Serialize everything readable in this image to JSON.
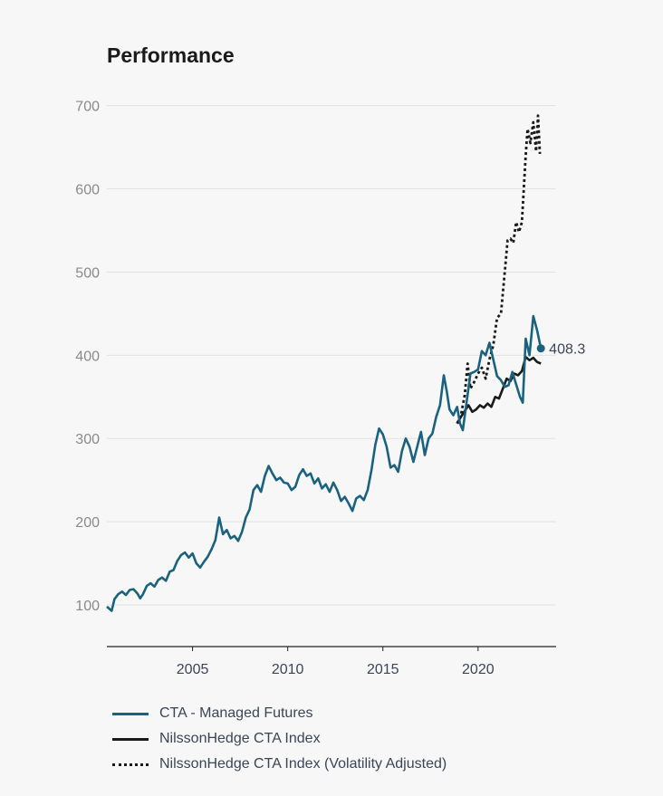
{
  "header": {
    "title": "Performance"
  },
  "colors": {
    "managed": "#1a6280",
    "index": "#1a1a1a",
    "grid": "#e2e2e2",
    "tick_y": "#8a8a8a",
    "tick_x": "#3a4655"
  },
  "chart_data": {
    "type": "line",
    "title": "Performance",
    "xlabel": "",
    "ylabel": "",
    "xlim": [
      2000.5,
      2024.1
    ],
    "ylim": [
      50,
      705
    ],
    "y_ticks": [
      100,
      200,
      300,
      400,
      500,
      600,
      700
    ],
    "x_ticks": [
      2005,
      2010,
      2015,
      2020
    ],
    "grid": "horizontal",
    "legend_position": "bottom",
    "end_label": "408.3",
    "series": [
      {
        "name": "CTA - Managed Futures",
        "color": "#1a6280",
        "style": "solid",
        "points": [
          [
            2000.5,
            98
          ],
          [
            2000.75,
            93
          ],
          [
            2000.9,
            107
          ],
          [
            2001.1,
            113
          ],
          [
            2001.3,
            116
          ],
          [
            2001.5,
            112
          ],
          [
            2001.7,
            118
          ],
          [
            2001.9,
            119
          ],
          [
            2002.1,
            114
          ],
          [
            2002.25,
            108
          ],
          [
            2002.4,
            113
          ],
          [
            2002.6,
            123
          ],
          [
            2002.8,
            126
          ],
          [
            2003.0,
            122
          ],
          [
            2003.2,
            130
          ],
          [
            2003.4,
            133
          ],
          [
            2003.6,
            129
          ],
          [
            2003.8,
            140
          ],
          [
            2004.0,
            142
          ],
          [
            2004.2,
            153
          ],
          [
            2004.4,
            160
          ],
          [
            2004.6,
            163
          ],
          [
            2004.8,
            157
          ],
          [
            2005.0,
            162
          ],
          [
            2005.2,
            150
          ],
          [
            2005.4,
            145
          ],
          [
            2005.6,
            152
          ],
          [
            2005.8,
            158
          ],
          [
            2006.0,
            167
          ],
          [
            2006.2,
            178
          ],
          [
            2006.4,
            205
          ],
          [
            2006.6,
            185
          ],
          [
            2006.8,
            190
          ],
          [
            2007.0,
            180
          ],
          [
            2007.2,
            183
          ],
          [
            2007.4,
            177
          ],
          [
            2007.6,
            188
          ],
          [
            2007.8,
            205
          ],
          [
            2008.0,
            215
          ],
          [
            2008.2,
            238
          ],
          [
            2008.4,
            244
          ],
          [
            2008.6,
            236
          ],
          [
            2008.8,
            255
          ],
          [
            2009.0,
            267
          ],
          [
            2009.2,
            258
          ],
          [
            2009.4,
            250
          ],
          [
            2009.6,
            253
          ],
          [
            2009.8,
            247
          ],
          [
            2010.0,
            246
          ],
          [
            2010.2,
            238
          ],
          [
            2010.4,
            242
          ],
          [
            2010.6,
            256
          ],
          [
            2010.8,
            263
          ],
          [
            2011.0,
            255
          ],
          [
            2011.2,
            258
          ],
          [
            2011.4,
            246
          ],
          [
            2011.6,
            252
          ],
          [
            2011.8,
            240
          ],
          [
            2012.0,
            245
          ],
          [
            2012.2,
            236
          ],
          [
            2012.4,
            247
          ],
          [
            2012.6,
            238
          ],
          [
            2012.8,
            225
          ],
          [
            2013.0,
            230
          ],
          [
            2013.2,
            222
          ],
          [
            2013.4,
            213
          ],
          [
            2013.6,
            228
          ],
          [
            2013.8,
            231
          ],
          [
            2014.0,
            226
          ],
          [
            2014.2,
            238
          ],
          [
            2014.4,
            262
          ],
          [
            2014.6,
            292
          ],
          [
            2014.8,
            312
          ],
          [
            2015.0,
            305
          ],
          [
            2015.2,
            290
          ],
          [
            2015.4,
            265
          ],
          [
            2015.6,
            268
          ],
          [
            2015.8,
            260
          ],
          [
            2016.0,
            285
          ],
          [
            2016.2,
            300
          ],
          [
            2016.4,
            290
          ],
          [
            2016.6,
            272
          ],
          [
            2016.8,
            290
          ],
          [
            2017.0,
            308
          ],
          [
            2017.2,
            280
          ],
          [
            2017.4,
            300
          ],
          [
            2017.6,
            306
          ],
          [
            2017.8,
            326
          ],
          [
            2018.0,
            340
          ],
          [
            2018.2,
            376
          ],
          [
            2018.35,
            357
          ],
          [
            2018.5,
            335
          ],
          [
            2018.7,
            328
          ],
          [
            2018.9,
            338
          ],
          [
            2019.05,
            318
          ],
          [
            2019.2,
            310
          ],
          [
            2019.4,
            344
          ],
          [
            2019.6,
            378
          ],
          [
            2019.8,
            380
          ],
          [
            2020.0,
            383
          ],
          [
            2020.2,
            405
          ],
          [
            2020.4,
            400
          ],
          [
            2020.6,
            415
          ],
          [
            2020.8,
            395
          ],
          [
            2021.0,
            375
          ],
          [
            2021.2,
            370
          ],
          [
            2021.4,
            362
          ],
          [
            2021.6,
            364
          ],
          [
            2021.8,
            380
          ],
          [
            2022.0,
            365
          ],
          [
            2022.2,
            350
          ],
          [
            2022.35,
            343
          ],
          [
            2022.5,
            420
          ],
          [
            2022.7,
            400
          ],
          [
            2022.9,
            447
          ],
          [
            2023.1,
            430
          ],
          [
            2023.3,
            408.3
          ]
        ]
      },
      {
        "name": "NilssonHedge CTA Index",
        "color": "#1a1a1a",
        "style": "solid",
        "points": [
          [
            2018.9,
            318
          ],
          [
            2019.1,
            326
          ],
          [
            2019.3,
            333
          ],
          [
            2019.5,
            340
          ],
          [
            2019.7,
            332
          ],
          [
            2019.9,
            335
          ],
          [
            2020.1,
            340
          ],
          [
            2020.3,
            337
          ],
          [
            2020.5,
            342
          ],
          [
            2020.7,
            338
          ],
          [
            2020.9,
            350
          ],
          [
            2021.1,
            348
          ],
          [
            2021.3,
            360
          ],
          [
            2021.5,
            372
          ],
          [
            2021.7,
            369
          ],
          [
            2021.9,
            378
          ],
          [
            2022.1,
            376
          ],
          [
            2022.3,
            381
          ],
          [
            2022.5,
            398
          ],
          [
            2022.7,
            394
          ],
          [
            2022.9,
            397
          ],
          [
            2023.1,
            392
          ],
          [
            2023.3,
            390
          ]
        ]
      },
      {
        "name": "NilssonHedge CTA Index (Volatility Adjusted)",
        "color": "#1a1a1a",
        "style": "dotted",
        "points": [
          [
            2018.9,
            318
          ],
          [
            2019.1,
            328
          ],
          [
            2019.3,
            352
          ],
          [
            2019.45,
            390
          ],
          [
            2019.6,
            360
          ],
          [
            2019.8,
            368
          ],
          [
            2020.0,
            378
          ],
          [
            2020.2,
            385
          ],
          [
            2020.4,
            372
          ],
          [
            2020.6,
            395
          ],
          [
            2020.8,
            412
          ],
          [
            2021.0,
            445
          ],
          [
            2021.2,
            450
          ],
          [
            2021.4,
            500
          ],
          [
            2021.55,
            538
          ],
          [
            2021.7,
            540
          ],
          [
            2021.85,
            535
          ],
          [
            2022.0,
            560
          ],
          [
            2022.15,
            548
          ],
          [
            2022.3,
            560
          ],
          [
            2022.5,
            640
          ],
          [
            2022.6,
            672
          ],
          [
            2022.75,
            655
          ],
          [
            2022.9,
            680
          ],
          [
            2023.05,
            645
          ],
          [
            2023.15,
            688
          ],
          [
            2023.25,
            642
          ]
        ]
      }
    ]
  }
}
